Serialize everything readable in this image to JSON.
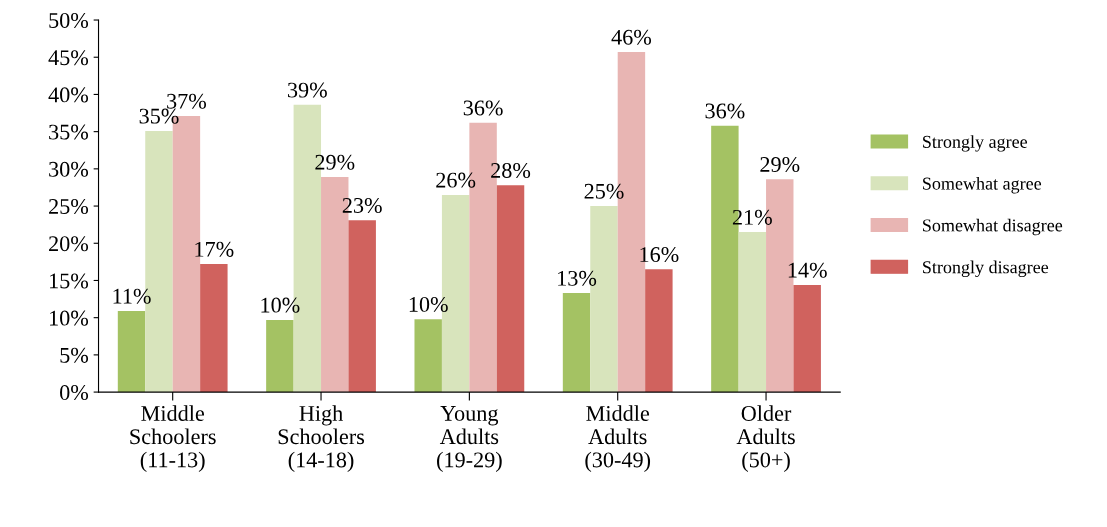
{
  "chart_data": {
    "type": "bar",
    "categories": [
      "Middle\nSchoolers\n(11-13)",
      "High\nSchoolers\n(14-18)",
      "Young\nAdults\n(19-29)",
      "Middle\nAdults\n(30-49)",
      "Older\nAdults\n(50+)"
    ],
    "series": [
      {
        "name": "Strongly agree",
        "color": "#a4c263",
        "values": [
          10.9,
          9.7,
          9.8,
          13.3,
          35.8
        ],
        "value_labels": [
          "11%",
          "10%",
          "10%",
          "13%",
          "36%"
        ]
      },
      {
        "name": "Somewhat agree",
        "color": "#d8e4bc",
        "values": [
          35.1,
          38.6,
          26.5,
          25.0,
          21.5
        ],
        "value_labels": [
          "35%",
          "39%",
          "26%",
          "25%",
          "21%"
        ]
      },
      {
        "name": "Somewhat disagree",
        "color": "#e8b5b3",
        "values": [
          37.1,
          28.9,
          36.2,
          45.7,
          28.6
        ],
        "value_labels": [
          "37%",
          "29%",
          "36%",
          "46%",
          "29%"
        ]
      },
      {
        "name": "Strongly disagree",
        "color": "#d0625e",
        "values": [
          17.2,
          23.1,
          27.8,
          16.5,
          14.4
        ],
        "value_labels": [
          "17%",
          "23%",
          "28%",
          "16%",
          "14%"
        ]
      }
    ],
    "ylim": [
      0,
      50
    ],
    "yticks": [
      {
        "value": 0,
        "label": "0%"
      },
      {
        "value": 5,
        "label": "5%"
      },
      {
        "value": 10,
        "label": "10%"
      },
      {
        "value": 15,
        "label": "15%"
      },
      {
        "value": 20,
        "label": "20%"
      },
      {
        "value": 25,
        "label": "25%"
      },
      {
        "value": 30,
        "label": "30%"
      },
      {
        "value": 35,
        "label": "35%"
      },
      {
        "value": 40,
        "label": "40%"
      },
      {
        "value": 45,
        "label": "45%"
      },
      {
        "value": 50,
        "label": "50%"
      }
    ],
    "legend": "right",
    "grid": false
  }
}
